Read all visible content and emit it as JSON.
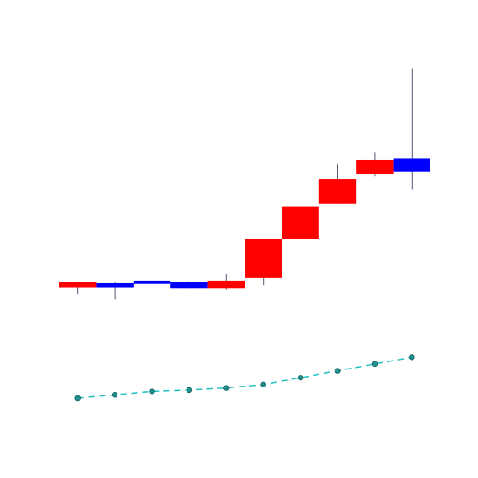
{
  "chart_data": {
    "type": "candlestick",
    "candles": [
      {
        "open": 13.0,
        "high": 13.0,
        "low": 11.2,
        "close": 12.2
      },
      {
        "open": 12.2,
        "high": 13.0,
        "low": 10.5,
        "close": 12.8
      },
      {
        "open": 12.7,
        "high": 13.1,
        "low": 12.7,
        "close": 13.2
      },
      {
        "open": 12.1,
        "high": 13.1,
        "low": 12.1,
        "close": 13.0
      },
      {
        "open": 13.2,
        "high": 14.1,
        "low": 11.9,
        "close": 12.1
      },
      {
        "open": 19.3,
        "high": 19.3,
        "low": 12.5,
        "close": 13.6
      },
      {
        "open": 24.0,
        "high": 24.0,
        "low": 19.3,
        "close": 19.3
      },
      {
        "open": 28.0,
        "high": 30.2,
        "low": 24.5,
        "close": 24.5
      },
      {
        "open": 30.9,
        "high": 31.9,
        "low": 28.5,
        "close": 28.8
      },
      {
        "open": 29.1,
        "high": 44.2,
        "low": 26.5,
        "close": 31.1
      }
    ],
    "line": [
      -4.0,
      -3.5,
      -3.0,
      -2.8,
      -2.5,
      -2.0,
      -1.0,
      0.0,
      1.0,
      2.0
    ],
    "colors": {
      "up": "#0000ff",
      "down": "#ff0000",
      "wick": "#555577",
      "line": "#20c0c0",
      "marker": "#209090"
    },
    "ylim": [
      -12.0,
      49.0
    ],
    "grid": false
  }
}
